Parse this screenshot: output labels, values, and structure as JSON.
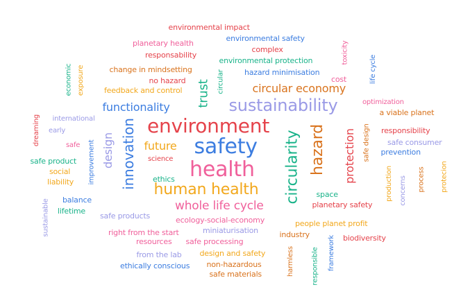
{
  "words": [
    {
      "text": "environmental impact",
      "color": "#e5434b"
    },
    {
      "text": "planetary health",
      "color": "#f0609b"
    },
    {
      "text": "environmental safety",
      "color": "#3c7de0"
    },
    {
      "text": "complex",
      "color": "#e5434b"
    },
    {
      "text": "responsability",
      "color": "#e5434b"
    },
    {
      "text": "environmental protection",
      "color": "#1ab38a"
    },
    {
      "text": "toxicity",
      "color": "#f0609b"
    },
    {
      "text": "life cycle",
      "color": "#3c7de0"
    },
    {
      "text": "economic",
      "color": "#1ab38a"
    },
    {
      "text": "exposure",
      "color": "#f2a81d"
    },
    {
      "text": "change in mindsetting",
      "color": "#d9731d"
    },
    {
      "text": "no hazard",
      "color": "#e5434b"
    },
    {
      "text": "circular",
      "color": "#1ab38a"
    },
    {
      "text": "hazard minimisation",
      "color": "#3c7de0"
    },
    {
      "text": "cost",
      "color": "#f0609b"
    },
    {
      "text": "feedback and control",
      "color": "#f2a81d"
    },
    {
      "text": "trust",
      "color": "#1ab38a"
    },
    {
      "text": "circular economy",
      "color": "#d9731d"
    },
    {
      "text": "functionality",
      "color": "#3c7de0"
    },
    {
      "text": "sustainability",
      "color": "#9a9ae6"
    },
    {
      "text": "optimization",
      "color": "#f0609b"
    },
    {
      "text": "a viable planet",
      "color": "#d9731d"
    },
    {
      "text": "international",
      "color": "#9a9ae6"
    },
    {
      "text": "dreaming",
      "color": "#e5434b"
    },
    {
      "text": "environment",
      "color": "#e5434b"
    },
    {
      "text": "early",
      "color": "#9a9ae6"
    },
    {
      "text": "innovation",
      "color": "#3c7de0"
    },
    {
      "text": "design",
      "color": "#9a9ae6"
    },
    {
      "text": "safety",
      "color": "#3c7de0"
    },
    {
      "text": "circularity",
      "color": "#1ab38a"
    },
    {
      "text": "hazard",
      "color": "#d9731d"
    },
    {
      "text": "protection",
      "color": "#e5434b"
    },
    {
      "text": "safe design",
      "color": "#d9731d"
    },
    {
      "text": "responsibility",
      "color": "#e5434b"
    },
    {
      "text": "safe",
      "color": "#f0609b"
    },
    {
      "text": "future",
      "color": "#f2a81d"
    },
    {
      "text": "safe consumer",
      "color": "#9a9ae6"
    },
    {
      "text": "prevention",
      "color": "#3c7de0"
    },
    {
      "text": "science",
      "color": "#e5434b"
    },
    {
      "text": "safe product",
      "color": "#1ab38a"
    },
    {
      "text": "improvement",
      "color": "#3c7de0"
    },
    {
      "text": "health",
      "color": "#f0609b"
    },
    {
      "text": "social",
      "color": "#f2a81d"
    },
    {
      "text": "ethics",
      "color": "#1ab38a"
    },
    {
      "text": "liability",
      "color": "#f2a81d"
    },
    {
      "text": "production",
      "color": "#f2a81d"
    },
    {
      "text": "concerns",
      "color": "#9a9ae6"
    },
    {
      "text": "process",
      "color": "#d9731d"
    },
    {
      "text": "protecion",
      "color": "#f2a81d"
    },
    {
      "text": "human health",
      "color": "#f2a81d"
    },
    {
      "text": "space",
      "color": "#1ab38a"
    },
    {
      "text": "balance",
      "color": "#3c7de0"
    },
    {
      "text": "sustainable",
      "color": "#9a9ae6"
    },
    {
      "text": "planetary safety",
      "color": "#e5434b"
    },
    {
      "text": "lifetime",
      "color": "#1ab38a"
    },
    {
      "text": "whole life cycle",
      "color": "#f0609b"
    },
    {
      "text": "safe products",
      "color": "#9a9ae6"
    },
    {
      "text": "ecology-social-economy",
      "color": "#f0609b"
    },
    {
      "text": "people planet profit",
      "color": "#f2a81d"
    },
    {
      "text": "miniaturisation",
      "color": "#9a9ae6"
    },
    {
      "text": "right from the start",
      "color": "#f0609b"
    },
    {
      "text": "industry",
      "color": "#d9731d"
    },
    {
      "text": "resources",
      "color": "#f0609b"
    },
    {
      "text": "safe processing",
      "color": "#f0609b"
    },
    {
      "text": "framework",
      "color": "#3c7de0"
    },
    {
      "text": "biodiversity",
      "color": "#e5434b"
    },
    {
      "text": "from the lab",
      "color": "#9a9ae6"
    },
    {
      "text": "design and safety",
      "color": "#f2a81d"
    },
    {
      "text": "harmless",
      "color": "#d9731d"
    },
    {
      "text": "responsible",
      "color": "#1ab38a"
    },
    {
      "text": "ethically conscious",
      "color": "#3c7de0"
    },
    {
      "text": "non-hazardous",
      "color": "#d9731d"
    },
    {
      "text": "safe materials",
      "color": "#d9731d"
    }
  ]
}
